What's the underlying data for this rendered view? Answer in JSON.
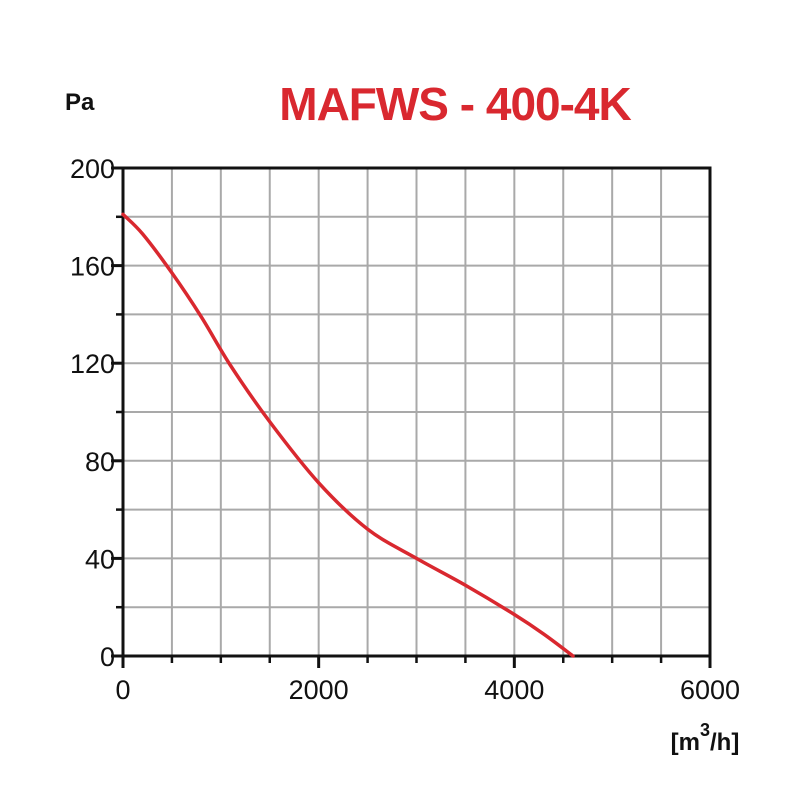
{
  "chart_data": {
    "type": "line",
    "title": "MAFWS - 400-4K",
    "ylabel": "Pa",
    "xlabel_parts": {
      "prefix": "[m",
      "sup": "3",
      "suffix": "/h]"
    },
    "xlim": [
      0,
      6000
    ],
    "ylim": [
      0,
      200
    ],
    "x_ticks": [
      0,
      2000,
      4000,
      6000
    ],
    "y_ticks": [
      0,
      40,
      80,
      120,
      160,
      200
    ],
    "x_grid_step": 500,
    "y_grid_step": 20,
    "grid": true,
    "legend": "none",
    "series": [
      {
        "x": [
          0,
          200,
          500,
          800,
          1100,
          1500,
          2000,
          2500,
          3000,
          3500,
          4000,
          4300,
          4600
        ],
        "y": [
          181,
          173,
          157,
          139,
          119,
          96,
          71,
          52,
          40,
          29,
          17,
          9,
          0
        ]
      }
    ]
  },
  "colors": {
    "title": "#d9282f",
    "curve": "#d9282f",
    "grid": "#a9a9a9",
    "frame": "#111111"
  }
}
